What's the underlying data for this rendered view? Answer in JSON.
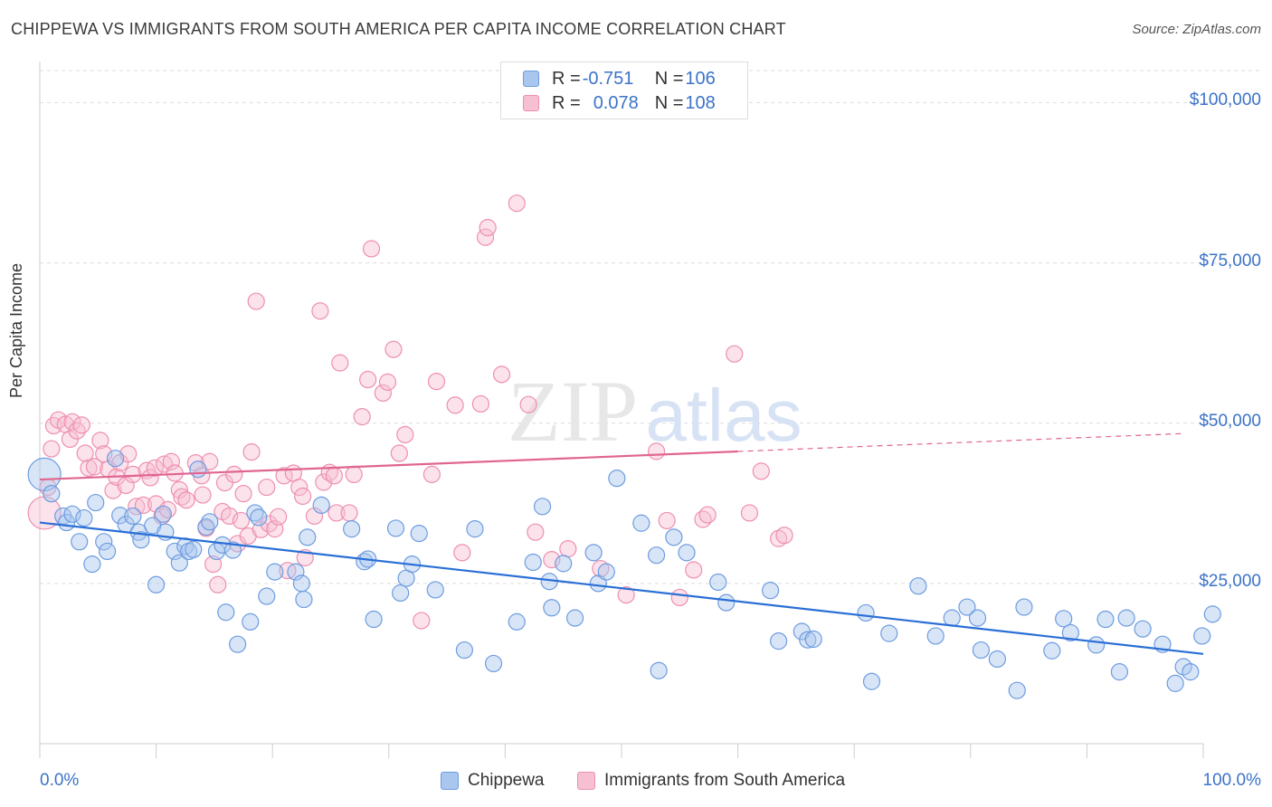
{
  "title": "CHIPPEWA VS IMMIGRANTS FROM SOUTH AMERICA PER CAPITA INCOME CORRELATION CHART",
  "source": "Source: ZipAtlas.com",
  "watermark": {
    "zip": "ZIP",
    "atlas": "atlas"
  },
  "legend": {
    "rows": [
      {
        "r_label": "R = ",
        "r_value": "-0.751",
        "n_label": "N = ",
        "n_value": "106",
        "color": "#a9c6ee",
        "border": "#6d9ce0"
      },
      {
        "r_label": "R = ",
        "r_value": "0.078",
        "n_label": "N = ",
        "n_value": "108",
        "color": "#f7bfd2",
        "border": "#ee8fb0"
      }
    ]
  },
  "bottom_legend": [
    {
      "label": "Chippewa",
      "color": "#a9c6ee",
      "border": "#6d9ce0"
    },
    {
      "label": "Immigrants from South America",
      "color": "#f7bfd2",
      "border": "#ee8fb0"
    }
  ],
  "chart_data": {
    "type": "scatter",
    "title": "CHIPPEWA VS IMMIGRANTS FROM SOUTH AMERICA PER CAPITA INCOME CORRELATION CHART",
    "xlabel": "",
    "ylabel": "Per Capita Income",
    "xlim": [
      0,
      100
    ],
    "ylim": [
      0,
      105000
    ],
    "x_tick_labels": [
      "0.0%",
      "100.0%"
    ],
    "y_ticks": [
      25000,
      50000,
      75000,
      100000
    ],
    "y_tick_labels": [
      "$25,000",
      "$50,000",
      "$75,000",
      "$100,000"
    ],
    "grid": true,
    "series": [
      {
        "name": "Chippewa",
        "color": "#6d9ce0",
        "fill": "#a9c6ee",
        "trend": {
          "x0": 0,
          "y0": 34500,
          "x1": 100,
          "y1": 14000,
          "color": "#2a6fd6",
          "dashed_from": null
        },
        "points": [
          [
            0.4,
            42000
          ],
          [
            1,
            39000
          ],
          [
            2,
            35500
          ],
          [
            2.3,
            34500
          ],
          [
            2.8,
            35800
          ],
          [
            3.4,
            31500
          ],
          [
            3.8,
            35200
          ],
          [
            4.5,
            28000
          ],
          [
            4.8,
            37600
          ],
          [
            5.5,
            31500
          ],
          [
            5.8,
            30000
          ],
          [
            6.5,
            44500
          ],
          [
            6.9,
            35600
          ],
          [
            7.4,
            34200
          ],
          [
            8,
            35500
          ],
          [
            8.5,
            33000
          ],
          [
            8.7,
            31800
          ],
          [
            9.7,
            34000
          ],
          [
            10,
            24800
          ],
          [
            10.6,
            35800
          ],
          [
            10.8,
            33000
          ],
          [
            11.6,
            30000
          ],
          [
            12,
            28200
          ],
          [
            12.5,
            30800
          ],
          [
            12.8,
            30000
          ],
          [
            13.2,
            30300
          ],
          [
            13.6,
            42800
          ],
          [
            14.3,
            33800
          ],
          [
            14.6,
            34600
          ],
          [
            15.2,
            30000
          ],
          [
            15.7,
            31000
          ],
          [
            16,
            20500
          ],
          [
            16.6,
            30200
          ],
          [
            17,
            15500
          ],
          [
            18.1,
            19000
          ],
          [
            18.5,
            36000
          ],
          [
            18.8,
            35300
          ],
          [
            19.5,
            23000
          ],
          [
            20.2,
            26800
          ],
          [
            22,
            26800
          ],
          [
            22.5,
            25000
          ],
          [
            22.7,
            22500
          ],
          [
            23,
            32200
          ],
          [
            24.2,
            37200
          ],
          [
            26.8,
            33500
          ],
          [
            27.9,
            28400
          ],
          [
            28.2,
            28800
          ],
          [
            28.7,
            19400
          ],
          [
            30.6,
            33600
          ],
          [
            31,
            23500
          ],
          [
            31.5,
            25800
          ],
          [
            32,
            28000
          ],
          [
            32.6,
            32800
          ],
          [
            34,
            24000
          ],
          [
            36.5,
            14600
          ],
          [
            37.4,
            33500
          ],
          [
            39,
            12500
          ],
          [
            41,
            19000
          ],
          [
            42.4,
            28300
          ],
          [
            43.2,
            37000
          ],
          [
            43.8,
            25300
          ],
          [
            44,
            21200
          ],
          [
            45,
            28100
          ],
          [
            46,
            19600
          ],
          [
            47.6,
            29800
          ],
          [
            48,
            25000
          ],
          [
            48.7,
            26800
          ],
          [
            49.6,
            41400
          ],
          [
            51.7,
            34400
          ],
          [
            53,
            29400
          ],
          [
            53.2,
            11400
          ],
          [
            54.5,
            32200
          ],
          [
            55.6,
            29800
          ],
          [
            58.3,
            25200
          ],
          [
            59,
            22000
          ],
          [
            62.8,
            23900
          ],
          [
            63.5,
            16000
          ],
          [
            65.5,
            17500
          ],
          [
            66,
            16200
          ],
          [
            66.5,
            16300
          ],
          [
            71,
            20400
          ],
          [
            71.5,
            9700
          ],
          [
            73,
            17200
          ],
          [
            75.5,
            24600
          ],
          [
            77,
            16800
          ],
          [
            78.4,
            19600
          ],
          [
            79.7,
            21300
          ],
          [
            80.6,
            19600
          ],
          [
            80.9,
            14600
          ],
          [
            82.3,
            13200
          ],
          [
            84,
            8300
          ],
          [
            84.6,
            21300
          ],
          [
            87,
            14500
          ],
          [
            88,
            19500
          ],
          [
            88.6,
            17300
          ],
          [
            90.8,
            15400
          ],
          [
            91.6,
            19400
          ],
          [
            92.8,
            11200
          ],
          [
            93.4,
            19600
          ],
          [
            94.8,
            17900
          ],
          [
            96.5,
            15500
          ],
          [
            97.6,
            9400
          ],
          [
            98.3,
            12000
          ],
          [
            98.9,
            11200
          ],
          [
            99.9,
            16800
          ],
          [
            100.8,
            20200
          ]
        ]
      },
      {
        "name": "Immigrants from South America",
        "color": "#ee8fb0",
        "fill": "#f7bfd2",
        "trend": {
          "x0": 0,
          "y0": 41200,
          "x1": 100,
          "y1": 48500,
          "color": "#e06591",
          "solid_until": 60
        },
        "points": [
          [
            0.4,
            36000
          ],
          [
            0.7,
            40000
          ],
          [
            1,
            46000
          ],
          [
            1.2,
            49600
          ],
          [
            1.6,
            50500
          ],
          [
            2.2,
            49800
          ],
          [
            2.6,
            47500
          ],
          [
            2.8,
            50200
          ],
          [
            3.2,
            48800
          ],
          [
            3.6,
            49700
          ],
          [
            3.9,
            45300
          ],
          [
            4.2,
            43000
          ],
          [
            4.7,
            43200
          ],
          [
            5.2,
            47300
          ],
          [
            5.5,
            45200
          ],
          [
            5.9,
            42800
          ],
          [
            6.3,
            39500
          ],
          [
            6.6,
            41600
          ],
          [
            6.9,
            43800
          ],
          [
            7.4,
            40300
          ],
          [
            7.6,
            45200
          ],
          [
            8,
            42000
          ],
          [
            8.3,
            37000
          ],
          [
            8.9,
            37200
          ],
          [
            9.2,
            42600
          ],
          [
            9.5,
            41500
          ],
          [
            9.9,
            43000
          ],
          [
            10,
            37400
          ],
          [
            10.5,
            35500
          ],
          [
            10.7,
            43600
          ],
          [
            11,
            36500
          ],
          [
            11.3,
            44000
          ],
          [
            11.6,
            42200
          ],
          [
            12,
            39600
          ],
          [
            12.2,
            38500
          ],
          [
            12.6,
            38000
          ],
          [
            13.4,
            43800
          ],
          [
            13.9,
            41800
          ],
          [
            14,
            38800
          ],
          [
            14.3,
            33600
          ],
          [
            14.6,
            44000
          ],
          [
            14.9,
            28000
          ],
          [
            15.3,
            24800
          ],
          [
            15.7,
            36200
          ],
          [
            15.9,
            40700
          ],
          [
            16.3,
            35500
          ],
          [
            16.7,
            42000
          ],
          [
            17,
            31200
          ],
          [
            17.3,
            34800
          ],
          [
            17.5,
            39000
          ],
          [
            17.9,
            32400
          ],
          [
            18.2,
            45500
          ],
          [
            18.6,
            69000
          ],
          [
            19,
            33400
          ],
          [
            19.5,
            40000
          ],
          [
            19.7,
            34300
          ],
          [
            20.2,
            33500
          ],
          [
            20.5,
            35400
          ],
          [
            21,
            41800
          ],
          [
            21.3,
            27000
          ],
          [
            21.8,
            42200
          ],
          [
            22.3,
            40000
          ],
          [
            22.6,
            38600
          ],
          [
            22.8,
            29000
          ],
          [
            23.6,
            35500
          ],
          [
            24.1,
            67500
          ],
          [
            24.4,
            40800
          ],
          [
            24.9,
            42300
          ],
          [
            25.3,
            41800
          ],
          [
            25.5,
            36000
          ],
          [
            25.8,
            59400
          ],
          [
            26.6,
            36000
          ],
          [
            27,
            42000
          ],
          [
            27.7,
            51000
          ],
          [
            28.2,
            56800
          ],
          [
            28.5,
            77200
          ],
          [
            29.5,
            54700
          ],
          [
            29.9,
            56400
          ],
          [
            30.4,
            61500
          ],
          [
            30.9,
            45300
          ],
          [
            31.4,
            48200
          ],
          [
            32.8,
            19200
          ],
          [
            33.7,
            42000
          ],
          [
            34.1,
            56500
          ],
          [
            35.7,
            52800
          ],
          [
            36.3,
            29800
          ],
          [
            37.9,
            53000
          ],
          [
            38.3,
            79000
          ],
          [
            38.5,
            80500
          ],
          [
            39.7,
            57600
          ],
          [
            41,
            84300
          ],
          [
            42,
            52900
          ],
          [
            42.6,
            33000
          ],
          [
            44,
            28700
          ],
          [
            45.4,
            30400
          ],
          [
            48.2,
            27300
          ],
          [
            50.4,
            23200
          ],
          [
            53,
            45600
          ],
          [
            53.9,
            34800
          ],
          [
            55,
            22800
          ],
          [
            56.2,
            27100
          ],
          [
            57,
            35000
          ],
          [
            57.4,
            35700
          ],
          [
            59.7,
            60800
          ],
          [
            61,
            36000
          ],
          [
            62,
            42500
          ],
          [
            63.5,
            32000
          ],
          [
            64,
            32500
          ]
        ]
      }
    ]
  }
}
